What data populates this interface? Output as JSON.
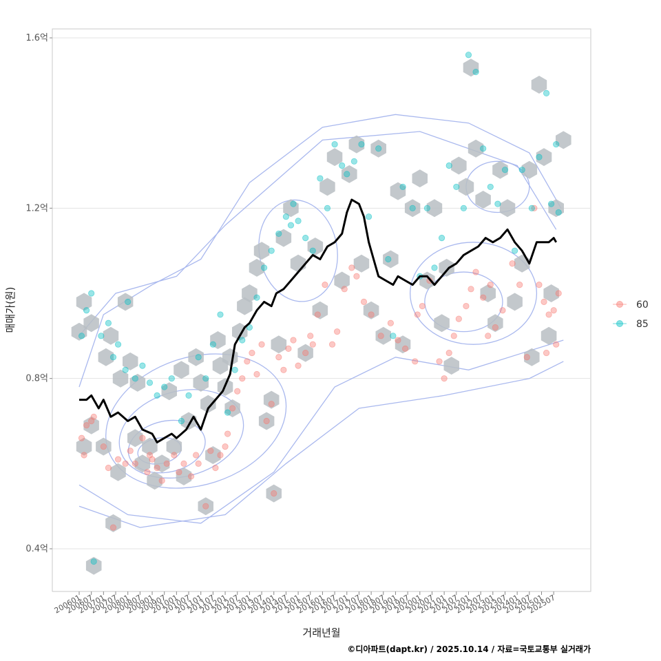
{
  "chart_data": {
    "type": "scatter",
    "xlabel": "거래년월",
    "ylabel": "매매가(원)",
    "caption": "©디아파트(dapt.kr) / 2025.10.14 / 자료=국토교통부 실거래가",
    "x_range": [
      2006.0,
      2025.75
    ],
    "ylim": [
      0.3,
      1.625
    ],
    "y_ticks": [
      {
        "value": 0.4,
        "label": "0.4억"
      },
      {
        "value": 0.8,
        "label": "0.8억"
      },
      {
        "value": 1.2,
        "label": "1.2억"
      },
      {
        "value": 1.6,
        "label": "1.6억"
      }
    ],
    "x_ticks": [
      "200601",
      "200607",
      "200701",
      "200707",
      "200801",
      "200807",
      "200901",
      "200907",
      "201001",
      "201007",
      "201101",
      "201107",
      "201201",
      "201207",
      "201301",
      "201307",
      "201401",
      "201407",
      "201501",
      "201507",
      "201601",
      "201607",
      "201701",
      "201707",
      "201801",
      "201807",
      "201901",
      "201907",
      "202001",
      "202007",
      "202101",
      "202107",
      "202201",
      "202207",
      "202301",
      "202307",
      "202401",
      "202407",
      "202501",
      "202507"
    ],
    "legend": {
      "position": "right",
      "entries": [
        {
          "label": "60",
          "color": "#F8766D"
        },
        {
          "label": "85",
          "color": "#00BFC4"
        }
      ]
    },
    "series": [
      {
        "name": "60",
        "color": "#F8766D",
        "points": [
          [
            2006.1,
            0.66
          ],
          [
            2006.2,
            0.62
          ],
          [
            2006.3,
            0.69
          ],
          [
            2006.5,
            0.7
          ],
          [
            2006.6,
            0.71
          ],
          [
            2007.0,
            0.64
          ],
          [
            2007.2,
            0.59
          ],
          [
            2007.4,
            0.45
          ],
          [
            2007.6,
            0.61
          ],
          [
            2007.9,
            0.6
          ],
          [
            2008.1,
            0.63
          ],
          [
            2008.3,
            0.6
          ],
          [
            2008.6,
            0.66
          ],
          [
            2008.8,
            0.58
          ],
          [
            2009.0,
            0.61
          ],
          [
            2009.2,
            0.59
          ],
          [
            2009.4,
            0.56
          ],
          [
            2009.6,
            0.6
          ],
          [
            2009.9,
            0.62
          ],
          [
            2010.1,
            0.58
          ],
          [
            2010.3,
            0.6
          ],
          [
            2010.6,
            0.57
          ],
          [
            2010.9,
            0.6
          ],
          [
            2011.2,
            0.5
          ],
          [
            2011.4,
            0.63
          ],
          [
            2011.6,
            0.59
          ],
          [
            2011.8,
            0.62
          ],
          [
            2012.0,
            0.64
          ],
          [
            2012.1,
            0.67
          ],
          [
            2012.3,
            0.73
          ],
          [
            2012.5,
            0.77
          ],
          [
            2012.7,
            0.8
          ],
          [
            2012.9,
            0.84
          ],
          [
            2013.1,
            0.86
          ],
          [
            2013.3,
            0.81
          ],
          [
            2013.5,
            0.88
          ],
          [
            2013.7,
            0.7
          ],
          [
            2013.9,
            0.74
          ],
          [
            2014.0,
            0.53
          ],
          [
            2014.2,
            0.85
          ],
          [
            2014.4,
            0.82
          ],
          [
            2014.6,
            0.87
          ],
          [
            2014.8,
            0.89
          ],
          [
            2015.0,
            0.83
          ],
          [
            2015.3,
            0.86
          ],
          [
            2015.5,
            0.9
          ],
          [
            2015.8,
            0.95
          ],
          [
            2016.1,
            1.02
          ],
          [
            2016.4,
            0.88
          ],
          [
            2016.6,
            0.91
          ],
          [
            2016.9,
            1.01
          ],
          [
            2017.2,
            1.06
          ],
          [
            2017.4,
            1.04
          ],
          [
            2017.7,
            0.98
          ],
          [
            2018.0,
            0.95
          ],
          [
            2018.4,
            0.9
          ],
          [
            2018.8,
            0.93
          ],
          [
            2019.1,
            0.89
          ],
          [
            2019.4,
            0.87
          ],
          [
            2019.8,
            0.84
          ],
          [
            2020.1,
            0.97
          ],
          [
            2020.4,
            1.03
          ],
          [
            2020.8,
            0.84
          ],
          [
            2021.0,
            0.8
          ],
          [
            2021.2,
            0.86
          ],
          [
            2021.4,
            0.9
          ],
          [
            2021.6,
            0.94
          ],
          [
            2021.9,
            0.97
          ],
          [
            2022.1,
            1.01
          ],
          [
            2022.3,
            1.05
          ],
          [
            2022.6,
            0.99
          ],
          [
            2022.9,
            1.02
          ],
          [
            2023.1,
            0.92
          ],
          [
            2023.4,
            0.96
          ],
          [
            2023.8,
            1.07
          ],
          [
            2024.1,
            1.02
          ],
          [
            2024.4,
            0.85
          ],
          [
            2024.7,
            1.2
          ],
          [
            2024.9,
            1.02
          ],
          [
            2025.1,
            0.98
          ],
          [
            2025.3,
            0.95
          ],
          [
            2025.5,
            0.96
          ],
          [
            2025.6,
            0.88
          ],
          [
            2025.7,
            1.0
          ],
          [
            2025.2,
            0.86
          ],
          [
            2022.8,
            0.9
          ],
          [
            2019.9,
            0.95
          ],
          [
            2015.6,
            0.88
          ],
          [
            2010.8,
            0.62
          ],
          [
            2008.9,
            0.62
          ]
        ]
      },
      {
        "name": "85",
        "color": "#00BFC4",
        "points": [
          [
            2006.1,
            0.9
          ],
          [
            2006.3,
            0.96
          ],
          [
            2006.5,
            1.0
          ],
          [
            2006.6,
            0.37
          ],
          [
            2006.9,
            0.9
          ],
          [
            2007.2,
            0.93
          ],
          [
            2007.4,
            0.85
          ],
          [
            2007.6,
            0.88
          ],
          [
            2007.9,
            0.82
          ],
          [
            2008.0,
            0.98
          ],
          [
            2008.3,
            0.8
          ],
          [
            2008.6,
            0.83
          ],
          [
            2008.9,
            0.79
          ],
          [
            2009.2,
            0.76
          ],
          [
            2009.5,
            0.78
          ],
          [
            2009.8,
            0.8
          ],
          [
            2010.2,
            0.7
          ],
          [
            2010.5,
            0.76
          ],
          [
            2010.9,
            0.85
          ],
          [
            2011.2,
            0.8
          ],
          [
            2011.5,
            0.88
          ],
          [
            2011.8,
            0.95
          ],
          [
            2012.1,
            0.72
          ],
          [
            2012.4,
            0.82
          ],
          [
            2012.7,
            0.89
          ],
          [
            2013.0,
            0.92
          ],
          [
            2013.3,
            0.99
          ],
          [
            2013.6,
            1.06
          ],
          [
            2013.9,
            1.1
          ],
          [
            2014.2,
            1.14
          ],
          [
            2014.5,
            1.18
          ],
          [
            2014.8,
            1.21
          ],
          [
            2015.0,
            1.17
          ],
          [
            2015.3,
            1.13
          ],
          [
            2015.6,
            1.1
          ],
          [
            2015.9,
            1.27
          ],
          [
            2016.2,
            1.2
          ],
          [
            2016.5,
            1.35
          ],
          [
            2016.8,
            1.3
          ],
          [
            2017.0,
            1.28
          ],
          [
            2017.3,
            1.31
          ],
          [
            2017.6,
            1.35
          ],
          [
            2017.9,
            1.18
          ],
          [
            2018.3,
            1.34
          ],
          [
            2018.7,
            1.08
          ],
          [
            2018.9,
            0.9
          ],
          [
            2019.3,
            1.25
          ],
          [
            2019.7,
            1.2
          ],
          [
            2020.0,
            1.04
          ],
          [
            2020.3,
            1.2
          ],
          [
            2020.6,
            1.06
          ],
          [
            2020.9,
            1.13
          ],
          [
            2021.2,
            1.3
          ],
          [
            2021.5,
            1.25
          ],
          [
            2021.8,
            1.2
          ],
          [
            2022.0,
            1.56
          ],
          [
            2022.3,
            1.52
          ],
          [
            2022.6,
            1.34
          ],
          [
            2022.9,
            1.25
          ],
          [
            2023.2,
            1.21
          ],
          [
            2023.5,
            1.29
          ],
          [
            2023.9,
            1.1
          ],
          [
            2024.2,
            1.29
          ],
          [
            2024.6,
            1.2
          ],
          [
            2024.9,
            1.32
          ],
          [
            2025.2,
            1.47
          ],
          [
            2025.4,
            1.21
          ],
          [
            2025.6,
            1.35
          ],
          [
            2025.7,
            1.19
          ],
          [
            2014.7,
            1.16
          ]
        ]
      }
    ],
    "trend_line": {
      "name": "median",
      "color": "#000000",
      "points": [
        [
          2006.0,
          0.75
        ],
        [
          2006.3,
          0.75
        ],
        [
          2006.5,
          0.76
        ],
        [
          2006.8,
          0.73
        ],
        [
          2007.0,
          0.75
        ],
        [
          2007.3,
          0.71
        ],
        [
          2007.6,
          0.72
        ],
        [
          2008.0,
          0.7
        ],
        [
          2008.3,
          0.71
        ],
        [
          2008.6,
          0.68
        ],
        [
          2009.0,
          0.67
        ],
        [
          2009.2,
          0.65
        ],
        [
          2009.5,
          0.66
        ],
        [
          2009.8,
          0.67
        ],
        [
          2010.0,
          0.66
        ],
        [
          2010.4,
          0.68
        ],
        [
          2010.7,
          0.71
        ],
        [
          2011.0,
          0.68
        ],
        [
          2011.3,
          0.73
        ],
        [
          2011.6,
          0.75
        ],
        [
          2011.9,
          0.77
        ],
        [
          2012.2,
          0.81
        ],
        [
          2012.4,
          0.88
        ],
        [
          2012.6,
          0.9
        ],
        [
          2012.8,
          0.92
        ],
        [
          2013.0,
          0.93
        ],
        [
          2013.3,
          0.96
        ],
        [
          2013.6,
          0.98
        ],
        [
          2013.9,
          0.97
        ],
        [
          2014.1,
          1.0
        ],
        [
          2014.4,
          1.01
        ],
        [
          2014.7,
          1.03
        ],
        [
          2015.0,
          1.05
        ],
        [
          2015.3,
          1.07
        ],
        [
          2015.6,
          1.09
        ],
        [
          2015.9,
          1.08
        ],
        [
          2016.2,
          1.11
        ],
        [
          2016.5,
          1.12
        ],
        [
          2016.8,
          1.14
        ],
        [
          2017.0,
          1.19
        ],
        [
          2017.2,
          1.22
        ],
        [
          2017.5,
          1.21
        ],
        [
          2017.7,
          1.18
        ],
        [
          2017.9,
          1.12
        ],
        [
          2018.1,
          1.08
        ],
        [
          2018.3,
          1.04
        ],
        [
          2018.6,
          1.03
        ],
        [
          2018.9,
          1.02
        ],
        [
          2019.1,
          1.04
        ],
        [
          2019.4,
          1.03
        ],
        [
          2019.7,
          1.02
        ],
        [
          2020.0,
          1.04
        ],
        [
          2020.3,
          1.04
        ],
        [
          2020.6,
          1.02
        ],
        [
          2020.9,
          1.04
        ],
        [
          2021.2,
          1.06
        ],
        [
          2021.5,
          1.07
        ],
        [
          2021.8,
          1.09
        ],
        [
          2022.1,
          1.1
        ],
        [
          2022.4,
          1.11
        ],
        [
          2022.7,
          1.13
        ],
        [
          2023.0,
          1.12
        ],
        [
          2023.3,
          1.13
        ],
        [
          2023.6,
          1.15
        ],
        [
          2023.9,
          1.12
        ],
        [
          2024.2,
          1.1
        ],
        [
          2024.5,
          1.07
        ],
        [
          2024.8,
          1.12
        ],
        [
          2025.1,
          1.12
        ],
        [
          2025.3,
          1.12
        ],
        [
          2025.5,
          1.13
        ],
        [
          2025.6,
          1.12
        ]
      ]
    },
    "hexbins": [
      [
        2006.0,
        0.91
      ],
      [
        2006.2,
        0.98
      ],
      [
        2006.5,
        0.93
      ],
      [
        2006.2,
        0.64
      ],
      [
        2006.5,
        0.69
      ],
      [
        2006.6,
        0.36
      ],
      [
        2007.1,
        0.85
      ],
      [
        2007.3,
        0.9
      ],
      [
        2007.0,
        0.64
      ],
      [
        2007.4,
        0.46
      ],
      [
        2007.7,
        0.8
      ],
      [
        2007.9,
        0.98
      ],
      [
        2007.6,
        0.58
      ],
      [
        2008.1,
        0.84
      ],
      [
        2008.4,
        0.79
      ],
      [
        2008.3,
        0.66
      ],
      [
        2008.6,
        0.6
      ],
      [
        2008.9,
        0.64
      ],
      [
        2009.1,
        0.56
      ],
      [
        2009.4,
        0.6
      ],
      [
        2009.7,
        0.77
      ],
      [
        2009.9,
        0.64
      ],
      [
        2010.2,
        0.82
      ],
      [
        2010.5,
        0.7
      ],
      [
        2010.3,
        0.57
      ],
      [
        2010.8,
        0.85
      ],
      [
        2011.0,
        0.79
      ],
      [
        2011.3,
        0.74
      ],
      [
        2011.5,
        0.62
      ],
      [
        2011.2,
        0.5
      ],
      [
        2011.7,
        0.89
      ],
      [
        2011.8,
        0.83
      ],
      [
        2012.0,
        0.78
      ],
      [
        2012.3,
        0.73
      ],
      [
        2012.2,
        0.85
      ],
      [
        2012.6,
        0.91
      ],
      [
        2012.8,
        0.97
      ],
      [
        2013.0,
        1.0
      ],
      [
        2013.3,
        1.06
      ],
      [
        2013.5,
        1.1
      ],
      [
        2013.7,
        0.7
      ],
      [
        2013.9,
        0.75
      ],
      [
        2014.0,
        0.53
      ],
      [
        2014.2,
        0.88
      ],
      [
        2014.4,
        1.13
      ],
      [
        2014.7,
        1.2
      ],
      [
        2015.0,
        1.07
      ],
      [
        2015.3,
        0.86
      ],
      [
        2015.7,
        1.11
      ],
      [
        2015.9,
        0.96
      ],
      [
        2016.2,
        1.25
      ],
      [
        2016.5,
        1.32
      ],
      [
        2016.8,
        1.03
      ],
      [
        2017.1,
        1.28
      ],
      [
        2017.4,
        1.35
      ],
      [
        2017.6,
        1.07
      ],
      [
        2018.0,
        0.96
      ],
      [
        2018.3,
        1.34
      ],
      [
        2018.5,
        0.9
      ],
      [
        2018.8,
        1.08
      ],
      [
        2019.1,
        1.24
      ],
      [
        2019.3,
        0.88
      ],
      [
        2019.7,
        1.2
      ],
      [
        2020.0,
        1.27
      ],
      [
        2020.3,
        1.03
      ],
      [
        2020.6,
        1.2
      ],
      [
        2020.9,
        0.93
      ],
      [
        2021.1,
        1.06
      ],
      [
        2021.3,
        0.83
      ],
      [
        2021.6,
        1.3
      ],
      [
        2021.9,
        1.25
      ],
      [
        2022.1,
        1.53
      ],
      [
        2022.3,
        1.34
      ],
      [
        2022.6,
        1.22
      ],
      [
        2022.8,
        1.0
      ],
      [
        2023.1,
        0.93
      ],
      [
        2023.3,
        1.29
      ],
      [
        2023.6,
        1.2
      ],
      [
        2023.9,
        0.98
      ],
      [
        2024.2,
        1.07
      ],
      [
        2024.5,
        1.29
      ],
      [
        2024.6,
        0.85
      ],
      [
        2024.9,
        1.49
      ],
      [
        2025.1,
        1.32
      ],
      [
        2025.3,
        0.9
      ],
      [
        2025.6,
        1.2
      ],
      [
        2025.9,
        1.36
      ],
      [
        2025.4,
        1.0
      ]
    ]
  }
}
